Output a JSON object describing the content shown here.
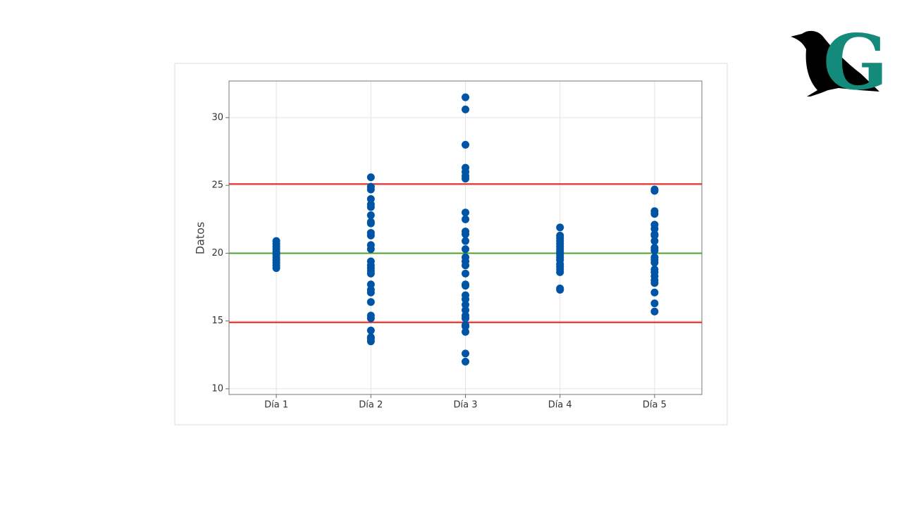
{
  "logo_text": "G",
  "chart_data": {
    "type": "individual-value",
    "ylabel": "Datos",
    "categories": [
      "Día 1",
      "Día 2",
      "Día 3",
      "Día 4",
      "Día 5"
    ],
    "values": [
      [
        20.9,
        20.7,
        20.5,
        20.3,
        20.1,
        19.9,
        19.7,
        19.5,
        19.3,
        19.1,
        18.9
      ],
      [
        25.6,
        24.9,
        24.7,
        24.0,
        23.6,
        23.4,
        22.8,
        22.3,
        22.2,
        21.5,
        21.3,
        20.6,
        20.3,
        19.4,
        19.1,
        18.9,
        18.7,
        18.5,
        17.7,
        17.3,
        17.1,
        16.4,
        15.4,
        15.2,
        14.3,
        13.8,
        13.7,
        13.5
      ],
      [
        31.5,
        30.6,
        28.0,
        26.3,
        26.0,
        25.7,
        25.5,
        23.0,
        22.5,
        21.6,
        21.4,
        20.9,
        20.3,
        19.7,
        19.4,
        19.1,
        18.5,
        17.7,
        17.6,
        16.9,
        16.6,
        16.2,
        15.8,
        15.4,
        15.2,
        14.7,
        14.6,
        14.2,
        12.6,
        12.0
      ],
      [
        21.9,
        21.3,
        21.1,
        20.9,
        20.7,
        20.5,
        20.3,
        20.1,
        19.9,
        19.7,
        19.5,
        19.2,
        19.0,
        18.8,
        18.6,
        17.4,
        17.3
      ],
      [
        24.7,
        24.6,
        23.1,
        22.9,
        22.1,
        21.8,
        21.4,
        21.3,
        20.9,
        20.4,
        20.2,
        19.7,
        19.5,
        19.3,
        18.8,
        18.6,
        18.3,
        18.0,
        17.8,
        17.1,
        16.3,
        15.7
      ]
    ],
    "color": "#0054a6",
    "reference_lines": [
      {
        "value": 25.1,
        "color": "#e2231a"
      },
      {
        "value": 20,
        "color": "#4aa02c"
      },
      {
        "value": 14.9,
        "color": "#e2231a"
      }
    ],
    "ylim": [
      9.58,
      32.7
    ],
    "yticks": [
      10,
      15,
      20,
      25,
      30
    ],
    "grid": true
  }
}
